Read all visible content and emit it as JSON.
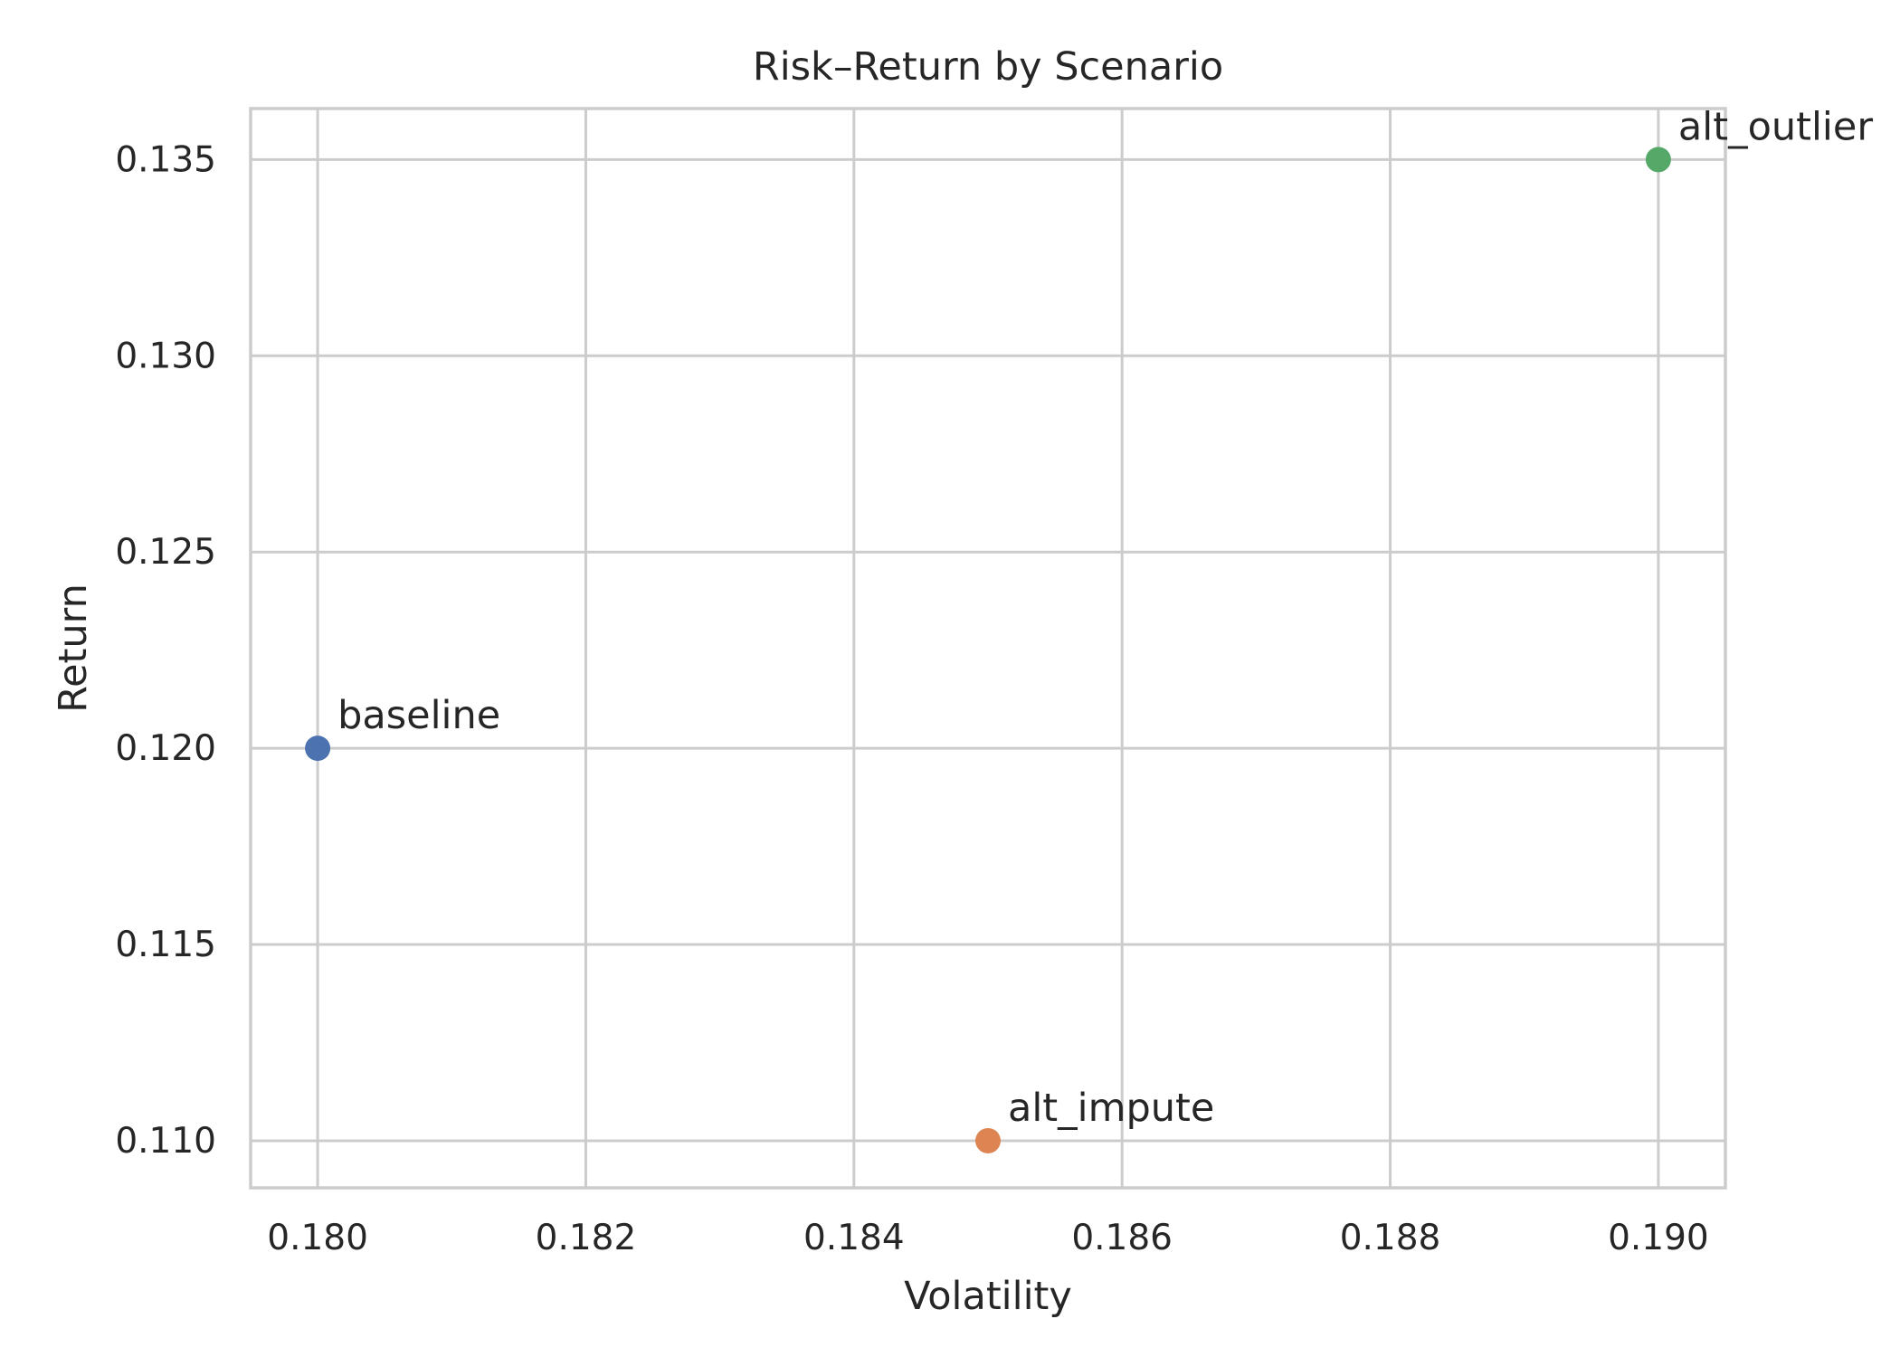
{
  "chart_data": {
    "type": "scatter",
    "title": "Risk–Return by Scenario",
    "xlabel": "Volatility",
    "ylabel": "Return",
    "xlim": [
      0.1795,
      0.1905
    ],
    "ylim": [
      0.1088,
      0.1363
    ],
    "x_ticks": [
      "0.180",
      "0.182",
      "0.184",
      "0.186",
      "0.188",
      "0.190"
    ],
    "x_tick_values": [
      0.18,
      0.182,
      0.184,
      0.186,
      0.188,
      0.19
    ],
    "y_ticks": [
      "0.110",
      "0.115",
      "0.120",
      "0.125",
      "0.130",
      "0.135"
    ],
    "y_tick_values": [
      0.11,
      0.115,
      0.12,
      0.125,
      0.13,
      0.135
    ],
    "grid": true,
    "points": [
      {
        "label": "baseline",
        "x": 0.18,
        "y": 0.12,
        "color": "#4c72b0"
      },
      {
        "label": "alt_impute",
        "x": 0.185,
        "y": 0.11,
        "color": "#dd8452"
      },
      {
        "label": "alt_outlier",
        "x": 0.19,
        "y": 0.135,
        "color": "#55a868"
      }
    ]
  }
}
